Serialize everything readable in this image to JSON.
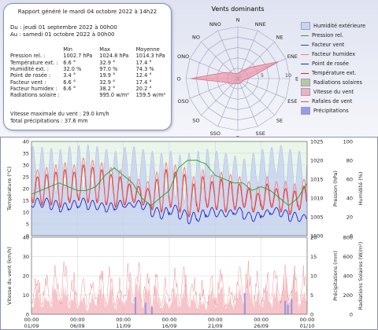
{
  "report": {
    "title": "Rapport généré le mardi 04 octobre 2022 à 14h22",
    "period_from": "Du : jeudi 01 septembre 2022 à 00h00",
    "period_to": "Au : samedi 01 octobre 2022 à 00h00",
    "col_headers": [
      "Min",
      "Max",
      "Moyenne"
    ],
    "rows": [
      {
        "label": "Pression rel. :",
        "min": "1002.7 hPa",
        "max": "1024.8 hPa",
        "avg": "1014.3 hPa"
      },
      {
        "label": "Température ext. :",
        "min": "6.6 °",
        "max": "32.9 °",
        "avg": "17.4 °"
      },
      {
        "label": "Humidité ext. :",
        "min": "32.0 %",
        "max": "97.0 %",
        "avg": "74.3 %"
      },
      {
        "label": "Point de rosée :",
        "min": "3.4 °",
        "max": "19.9 °",
        "avg": "12.4 °"
      },
      {
        "label": "Facteur vent :",
        "min": "6.6 °",
        "max": "32.9 °",
        "avg": "17.4 °"
      },
      {
        "label": "Facteur humidex :",
        "min": "6.6 °",
        "max": "38.2 °",
        "avg": "20.2 °"
      },
      {
        "label": "Radiations solaire :",
        "min": "",
        "max": "995.0 w/m²",
        "avg": "159.5 w/m²"
      }
    ],
    "max_wind": "Vitesse maximale du vent : 29.0 km/h",
    "total_precip": "Total précipitations : 37.6 mm"
  },
  "wind_rose": {
    "title": "Vents dominants",
    "directions": [
      "N",
      "NNE",
      "NE",
      "ENE",
      "E",
      "ESE",
      "SE",
      "SSE",
      "S",
      "SSO",
      "SO",
      "OSO",
      "O",
      "ONO",
      "NO",
      "NNO"
    ],
    "ring_labels": [
      "5",
      "10"
    ],
    "max_ring": 10,
    "values": [
      1,
      1.5,
      3,
      8.5,
      2,
      1,
      1,
      1,
      1,
      1,
      1.5,
      2,
      9,
      3,
      1.5,
      1
    ],
    "fill_color": "#f08fa0",
    "stroke_color": "#d66a82"
  },
  "legend": [
    {
      "label": "Humidité extérieure",
      "color": "#c8d4f0",
      "kind": "box"
    },
    {
      "label": "Pression rel.",
      "color": "#22a022",
      "kind": "line"
    },
    {
      "label": "Facteur vent",
      "color": "#3a3ae0",
      "kind": "line"
    },
    {
      "label": "Facteur humidex",
      "color": "#f08080",
      "kind": "line"
    },
    {
      "label": "Point de rosée",
      "color": "#2020cc",
      "kind": "line"
    },
    {
      "label": "Température ext.",
      "color": "#e02020",
      "kind": "line"
    },
    {
      "label": "Radiations solaires",
      "color": "#b8c8a0",
      "kind": "box"
    },
    {
      "label": "Vitesse du vent",
      "color": "#f4b0b8",
      "kind": "box"
    },
    {
      "label": "Rafales de vent",
      "color": "#e05050",
      "kind": "line"
    },
    {
      "label": "Précipitations",
      "color": "#9a9ae6",
      "kind": "box"
    }
  ],
  "chart_data": [
    {
      "type": "line",
      "x_ticks": [
        "00:00\n01/09",
        "00:00\n06/09",
        "00:00\n11/09",
        "00:00\n16/09",
        "00:00\n21/09",
        "00:00\n26/09",
        "00:00\n01/10"
      ],
      "xlim_days": [
        0,
        30
      ],
      "y_left": {
        "label": "Température (°C)",
        "ylim": [
          0,
          40
        ],
        "ticks": [
          0,
          5,
          10,
          15,
          20,
          25,
          30,
          35,
          40
        ]
      },
      "y_right1": {
        "label": "Pression (hPa)",
        "ylim": [
          1000,
          1025
        ],
        "ticks": [
          1000,
          1005,
          1010,
          1015,
          1020,
          1025
        ]
      },
      "y_right2": {
        "label": "Humidité (%)",
        "ylim": [
          0,
          100
        ],
        "ticks": [
          0,
          20,
          40,
          60,
          80,
          100
        ]
      },
      "series": [
        {
          "name": "Humidité extérieure",
          "kind": "humidity_area",
          "color": "#c8d4f0",
          "daily_max": [
            95,
            94,
            93,
            92,
            95,
            96,
            97,
            95,
            92,
            90,
            94,
            95,
            92,
            90,
            88,
            90,
            86,
            88,
            90,
            92,
            90,
            88,
            85,
            82,
            88,
            92,
            94,
            96,
            92,
            90,
            88
          ],
          "daily_min": [
            55,
            50,
            48,
            45,
            50,
            48,
            45,
            50,
            55,
            52,
            60,
            58,
            55,
            50,
            42,
            45,
            40,
            35,
            38,
            50,
            55,
            58,
            50,
            45,
            48,
            55,
            60,
            65,
            55,
            50,
            48
          ]
        },
        {
          "name": "Température ext.",
          "color": "#e02020",
          "daily_max": [
            25,
            26,
            27,
            28,
            27,
            30,
            29,
            28,
            26,
            25,
            22,
            21,
            20,
            24,
            28,
            27,
            26,
            22,
            25,
            23,
            24,
            23,
            22,
            20,
            18,
            22,
            20,
            20,
            19,
            21,
            22
          ],
          "daily_min": [
            14,
            13,
            13,
            12,
            14,
            15,
            14,
            14,
            13,
            12,
            13,
            14,
            13,
            11,
            10,
            12,
            10,
            8,
            10,
            12,
            11,
            10,
            11,
            12,
            10,
            11,
            12,
            10,
            9,
            11,
            12
          ]
        },
        {
          "name": "Facteur humidex",
          "color": "#f08080",
          "daily_max": [
            28,
            29,
            30,
            31,
            30,
            33,
            32,
            31,
            29,
            28,
            25,
            24,
            23,
            27,
            31,
            30,
            29,
            25,
            28,
            26,
            27,
            26,
            25,
            23,
            21,
            25,
            23,
            23,
            22,
            24,
            25
          ],
          "daily_min": [
            15,
            14,
            14,
            13,
            15,
            16,
            15,
            15,
            14,
            13,
            14,
            15,
            14,
            12,
            11,
            13,
            11,
            9,
            11,
            13,
            12,
            11,
            12,
            13,
            11,
            12,
            13,
            11,
            10,
            12,
            13
          ]
        },
        {
          "name": "Point de rosée",
          "color": "#2020cc",
          "daily_max": [
            16,
            16,
            15,
            14,
            15,
            16,
            15,
            14,
            14,
            15,
            14,
            15,
            14,
            12,
            12,
            13,
            11,
            10,
            11,
            12,
            11,
            11,
            12,
            10,
            10,
            11,
            12,
            11,
            10,
            9,
            9
          ],
          "daily_min": [
            12,
            12,
            11,
            10,
            11,
            12,
            11,
            11,
            10,
            11,
            12,
            12,
            11,
            8,
            7,
            9,
            7,
            5,
            6,
            8,
            8,
            8,
            9,
            7,
            6,
            8,
            9,
            8,
            6,
            6,
            7
          ]
        },
        {
          "name": "Pression rel.",
          "color": "#22a022",
          "daily": [
            1011,
            1012,
            1013,
            1014,
            1013,
            1012,
            1012,
            1013,
            1016,
            1018,
            1016,
            1014,
            1010,
            1008,
            1010,
            1012,
            1018,
            1020,
            1020,
            1019,
            1016,
            1015,
            1014,
            1014,
            1012,
            1013,
            1012,
            1010,
            1008,
            1010,
            1014
          ]
        }
      ]
    },
    {
      "type": "area",
      "x_ticks": [
        "00:00\n01/09",
        "00:00\n06/09",
        "00:00\n11/09",
        "00:00\n16/09",
        "00:00\n21/09",
        "00:00\n26/09",
        "00:00\n01/10"
      ],
      "xlim_days": [
        0,
        30
      ],
      "y_left": {
        "label": "Vitesse du vent (km/h)",
        "ylim": [
          0,
          40
        ],
        "ticks": [
          0,
          10,
          20,
          30,
          40
        ]
      },
      "y_right1": {
        "label": "Précipitations (mm)",
        "ylim": [
          0,
          20
        ],
        "ticks": [
          0,
          5,
          10,
          15,
          20
        ]
      },
      "y_right2": {
        "label": "Radiations Solaires (W/m²)",
        "ylim": [
          0,
          800
        ],
        "ticks": [
          0,
          200,
          400,
          600,
          800
        ]
      },
      "series": [
        {
          "name": "Vitesse du vent",
          "color": "#f4b0b8",
          "daily_max": [
            18,
            15,
            20,
            22,
            16,
            14,
            12,
            18,
            20,
            15,
            22,
            24,
            20,
            16,
            14,
            18,
            20,
            15,
            12,
            16,
            18,
            14,
            20,
            22,
            16,
            18,
            20,
            24,
            26,
            18,
            14
          ]
        },
        {
          "name": "Rafales de vent",
          "color": "#e05050",
          "daily_max": [
            26,
            22,
            28,
            29,
            24,
            20,
            18,
            26,
            28,
            22,
            29,
            29,
            28,
            22,
            20,
            26,
            28,
            22,
            18,
            22,
            26,
            20,
            28,
            29,
            24,
            26,
            28,
            29,
            29,
            26,
            20
          ]
        },
        {
          "name": "Précipitations",
          "color": "#9a9ae6",
          "events": [
            [
              11.3,
              4.5
            ],
            [
              12.4,
              3.0
            ],
            [
              13.1,
              2.0
            ],
            [
              23.2,
              5.5
            ],
            [
              27.6,
              3.5
            ],
            [
              27.9,
              2.5
            ],
            [
              28.3,
              4.0
            ]
          ]
        }
      ]
    }
  ]
}
